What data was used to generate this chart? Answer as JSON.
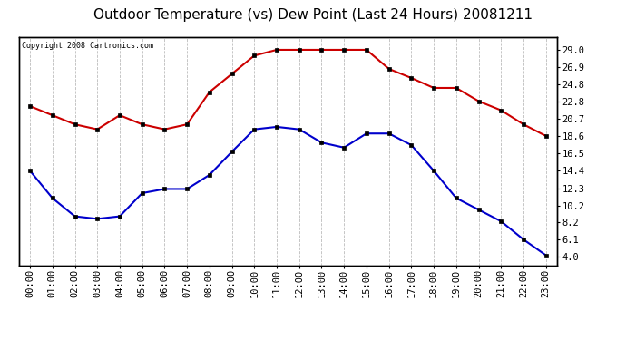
{
  "title": "Outdoor Temperature (vs) Dew Point (Last 24 Hours) 20081211",
  "copyright_text": "Copyright 2008 Cartronics.com",
  "x_labels": [
    "00:00",
    "01:00",
    "02:00",
    "03:00",
    "04:00",
    "05:00",
    "06:00",
    "07:00",
    "08:00",
    "09:00",
    "10:00",
    "11:00",
    "12:00",
    "13:00",
    "14:00",
    "15:00",
    "16:00",
    "17:00",
    "18:00",
    "19:00",
    "20:00",
    "21:00",
    "22:00",
    "23:00"
  ],
  "temp_values": [
    22.2,
    21.1,
    20.0,
    19.4,
    21.1,
    20.0,
    19.4,
    20.0,
    23.9,
    26.1,
    28.3,
    29.0,
    29.0,
    29.0,
    29.0,
    29.0,
    26.7,
    25.6,
    24.4,
    24.4,
    22.8,
    21.7,
    20.0,
    18.6
  ],
  "dew_values": [
    14.4,
    11.1,
    8.9,
    8.6,
    8.9,
    11.7,
    12.2,
    12.2,
    13.9,
    16.7,
    19.4,
    19.7,
    19.4,
    17.8,
    17.2,
    18.9,
    18.9,
    17.5,
    14.4,
    11.1,
    9.7,
    8.3,
    6.1,
    4.2
  ],
  "temp_color": "#cc0000",
  "dew_color": "#0000cc",
  "bg_color": "#ffffff",
  "plot_bg_color": "#ffffff",
  "grid_color": "#bbbbbb",
  "y_right_ticks": [
    4.0,
    6.1,
    8.2,
    10.2,
    12.3,
    14.4,
    16.5,
    18.6,
    20.7,
    22.8,
    24.8,
    26.9,
    29.0
  ],
  "y_min": 3.0,
  "y_max": 30.5,
  "title_fontsize": 11,
  "tick_fontsize": 7.5,
  "copyright_fontsize": 6,
  "marker_size": 3,
  "linewidth": 1.5
}
